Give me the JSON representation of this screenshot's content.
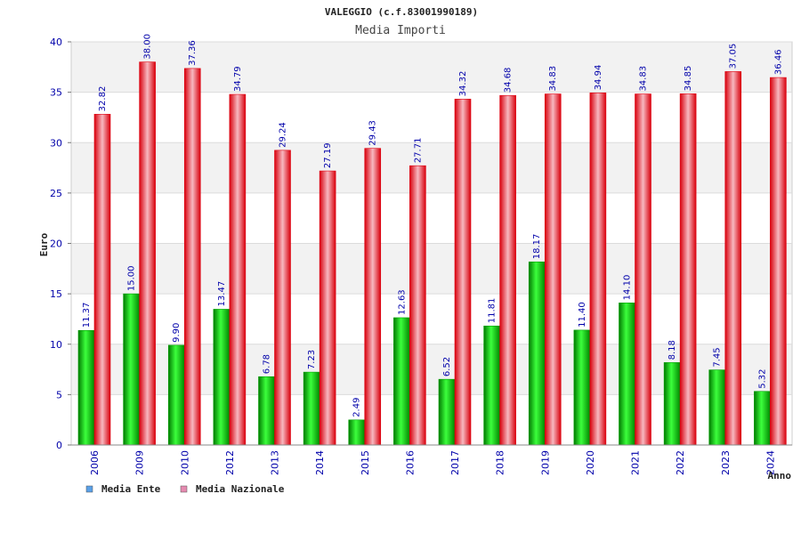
{
  "chart_data": {
    "type": "bar",
    "title": "VALEGGIO (c.f.83001990189)",
    "subtitle": "Media Importi",
    "ylabel": "Euro",
    "xlabel": "Anno",
    "ylim": [
      0,
      40
    ],
    "yticks": [
      0,
      5,
      10,
      15,
      20,
      25,
      30,
      35,
      40
    ],
    "grid": true,
    "legend_position": "bottom-left",
    "categories": [
      "2006",
      "2009",
      "2010",
      "2012",
      "2013",
      "2014",
      "2015",
      "2016",
      "2017",
      "2018",
      "2019",
      "2020",
      "2021",
      "2022",
      "2023",
      "2024"
    ],
    "series": [
      {
        "name": "Media Ente",
        "color": "#00a000",
        "legend_color": "#5aa0e8",
        "values": [
          11.37,
          15.0,
          9.9,
          13.47,
          6.78,
          7.23,
          2.49,
          12.63,
          6.52,
          11.81,
          18.17,
          11.4,
          14.1,
          8.18,
          7.45,
          5.32
        ],
        "labels": [
          "11.37",
          "15.00",
          "9.90",
          "13.47",
          "6.78",
          "7.23",
          "2.49",
          "12.63",
          "6.52",
          "11.81",
          "18.17",
          "11.40",
          "14.10",
          "8.18",
          "7.45",
          "5.32"
        ]
      },
      {
        "name": "Media Nazionale",
        "color": "#e00010",
        "legend_color": "#e58ab0",
        "values": [
          32.82,
          38.0,
          37.36,
          34.79,
          29.24,
          27.19,
          29.43,
          27.71,
          34.32,
          34.68,
          34.83,
          34.94,
          34.83,
          34.85,
          37.05,
          36.46
        ],
        "labels": [
          "32.82",
          "38.00",
          "37.36",
          "34.79",
          "29.24",
          "27.19",
          "29.43",
          "27.71",
          "34.32",
          "34.68",
          "34.83",
          "34.94",
          "34.83",
          "34.85",
          "37.05",
          "36.46"
        ]
      }
    ]
  }
}
